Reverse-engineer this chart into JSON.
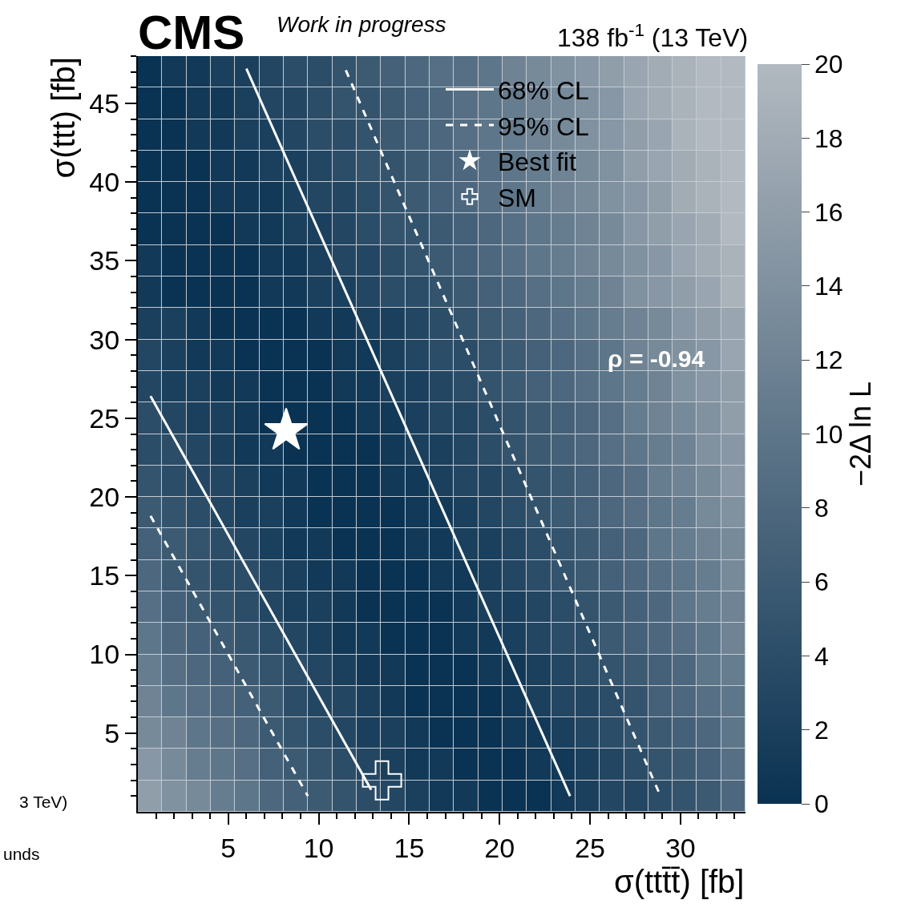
{
  "chart_data": {
    "type": "heatmap",
    "title": "CMS",
    "subtitle": "Work in progress",
    "xlabel": "σ(ttt̄t̄) [fb]",
    "ylabel": "σ(ttt) [fb]",
    "clabel": "−2Δ ln L",
    "annotations": [
      "138 fb$^{-1}$ (13 TeV)",
      "ρ = -0.94",
      "3 TeV)",
      "unds"
    ],
    "x": [
      0.67,
      2.02,
      3.36,
      4.7,
      6.05,
      7.39,
      8.74,
      10.08,
      11.42,
      12.77,
      14.11,
      15.46,
      16.8,
      18.14,
      19.49,
      20.83,
      22.18,
      23.52,
      24.86,
      26.21,
      27.55,
      28.9,
      30.24,
      31.58,
      32.93
    ],
    "y": [
      47,
      45,
      43,
      41,
      39,
      37,
      35,
      33,
      31,
      29,
      27,
      25,
      23,
      21,
      19,
      17,
      15,
      13,
      11,
      9,
      7,
      5,
      3,
      1
    ],
    "cells": [
      [
        0,
        1,
        1,
        2,
        2,
        3,
        4,
        4,
        5,
        6,
        7,
        8,
        9,
        9,
        10,
        12,
        13,
        14,
        15,
        16,
        17,
        18,
        19,
        20,
        20
      ],
      [
        0,
        0,
        1,
        1,
        2,
        3,
        3,
        4,
        5,
        5,
        6,
        7,
        8,
        9,
        10,
        11,
        12,
        13,
        14,
        15,
        17,
        18,
        19,
        20,
        20
      ],
      [
        0,
        0,
        1,
        1,
        2,
        2,
        3,
        4,
        4,
        5,
        6,
        7,
        8,
        9,
        10,
        11,
        12,
        13,
        14,
        15,
        16,
        17,
        19,
        20,
        20
      ],
      [
        0,
        0,
        0,
        1,
        1,
        2,
        2,
        3,
        4,
        5,
        5,
        6,
        7,
        8,
        9,
        10,
        11,
        12,
        13,
        14,
        16,
        17,
        18,
        19,
        20
      ],
      [
        0,
        0,
        0,
        1,
        1,
        1,
        2,
        3,
        3,
        4,
        5,
        6,
        7,
        8,
        9,
        10,
        11,
        12,
        13,
        14,
        15,
        16,
        18,
        19,
        20
      ],
      [
        0,
        0,
        0,
        0,
        1,
        1,
        2,
        2,
        3,
        4,
        5,
        5,
        6,
        7,
        8,
        9,
        10,
        11,
        12,
        13,
        15,
        16,
        17,
        18,
        20
      ],
      [
        1,
        0,
        0,
        0,
        0,
        1,
        1,
        2,
        3,
        3,
        4,
        5,
        6,
        7,
        8,
        9,
        10,
        11,
        12,
        13,
        14,
        15,
        17,
        18,
        19
      ],
      [
        1,
        0,
        0,
        0,
        0,
        1,
        1,
        2,
        2,
        3,
        4,
        4,
        5,
        6,
        7,
        8,
        9,
        10,
        11,
        12,
        14,
        15,
        16,
        17,
        19
      ],
      [
        2,
        2,
        1,
        0,
        0,
        0,
        0,
        1,
        1,
        2,
        2,
        3,
        4,
        5,
        6,
        7,
        8,
        9,
        10,
        11,
        12,
        13,
        15,
        16,
        17
      ],
      [
        3,
        2,
        1,
        1,
        0,
        0,
        0,
        0,
        1,
        1,
        2,
        3,
        4,
        4,
        5,
        6,
        7,
        8,
        9,
        10,
        12,
        13,
        14,
        15,
        17
      ],
      [
        3,
        2,
        2,
        1,
        1,
        0,
        0,
        0,
        1,
        1,
        2,
        2,
        3,
        4,
        5,
        6,
        7,
        8,
        9,
        10,
        11,
        12,
        14,
        15,
        16
      ],
      [
        4,
        3,
        2,
        2,
        1,
        0,
        0,
        0,
        0,
        1,
        1,
        2,
        3,
        3,
        4,
        5,
        6,
        7,
        8,
        9,
        11,
        12,
        13,
        14,
        16
      ],
      [
        4,
        4,
        3,
        2,
        1,
        1,
        0,
        0,
        0,
        0,
        1,
        2,
        2,
        3,
        4,
        5,
        6,
        7,
        8,
        9,
        10,
        11,
        12,
        14,
        15
      ],
      [
        5,
        4,
        3,
        3,
        2,
        1,
        1,
        0,
        0,
        0,
        1,
        1,
        2,
        3,
        3,
        4,
        5,
        6,
        7,
        8,
        9,
        11,
        12,
        13,
        15
      ],
      [
        6,
        5,
        4,
        3,
        2,
        2,
        1,
        0,
        0,
        0,
        0,
        1,
        1,
        2,
        3,
        4,
        5,
        6,
        7,
        8,
        9,
        10,
        11,
        13,
        14
      ],
      [
        7,
        6,
        5,
        4,
        3,
        2,
        1,
        1,
        0,
        0,
        0,
        1,
        1,
        2,
        2,
        3,
        4,
        5,
        6,
        7,
        8,
        10,
        11,
        12,
        13
      ],
      [
        8,
        6,
        5,
        4,
        4,
        3,
        2,
        1,
        1,
        0,
        0,
        0,
        1,
        1,
        2,
        3,
        4,
        5,
        6,
        7,
        8,
        9,
        10,
        11,
        13
      ],
      [
        9,
        7,
        6,
        5,
        4,
        3,
        2,
        2,
        1,
        0,
        0,
        0,
        0,
        1,
        2,
        2,
        3,
        4,
        5,
        6,
        7,
        8,
        10,
        11,
        12
      ],
      [
        10,
        8,
        7,
        6,
        5,
        4,
        3,
        2,
        1,
        1,
        0,
        0,
        0,
        1,
        1,
        2,
        3,
        4,
        4,
        6,
        7,
        8,
        9,
        10,
        12
      ],
      [
        11,
        9,
        8,
        7,
        6,
        5,
        4,
        3,
        2,
        1,
        1,
        0,
        0,
        0,
        1,
        1,
        2,
        3,
        4,
        5,
        6,
        7,
        8,
        10,
        11
      ],
      [
        12,
        10,
        9,
        8,
        7,
        6,
        4,
        3,
        3,
        2,
        1,
        0,
        0,
        0,
        0,
        1,
        2,
        3,
        3,
        4,
        5,
        7,
        8,
        9,
        10
      ],
      [
        13,
        12,
        10,
        9,
        8,
        6,
        5,
        4,
        3,
        2,
        2,
        1,
        0,
        0,
        0,
        1,
        1,
        2,
        3,
        4,
        5,
        6,
        7,
        8,
        10
      ],
      [
        15,
        13,
        11,
        10,
        9,
        7,
        6,
        5,
        4,
        3,
        2,
        1,
        1,
        0,
        0,
        0,
        1,
        1,
        2,
        3,
        4,
        5,
        6,
        7,
        9
      ],
      [
        16,
        14,
        13,
        11,
        10,
        8,
        7,
        6,
        5,
        4,
        3,
        2,
        1,
        1,
        0,
        0,
        0,
        1,
        2,
        3,
        3,
        4,
        5,
        6,
        8
      ]
    ],
    "colors": [
      "#0a3252",
      "#b2b9c0"
    ],
    "clim": [
      0,
      20
    ],
    "cticks": [
      0,
      2,
      4,
      6,
      8,
      10,
      12,
      14,
      16,
      18,
      20
    ],
    "xlim": [
      0,
      33.6
    ],
    "ylim": [
      0,
      48
    ],
    "xticks": [
      5,
      10,
      15,
      20,
      25,
      30
    ],
    "yticks": [
      5,
      10,
      15,
      20,
      25,
      30,
      35,
      40,
      45
    ],
    "series": [
      {
        "name": "68% CL",
        "type": "line",
        "line_style": "solid",
        "color": "#ffffff",
        "x": [
          6.0,
          23.9
        ],
        "values": [
          47.2,
          1.0
        ]
      },
      {
        "type": "line",
        "line_style": "solid",
        "color": "#ffffff",
        "x": [
          0.7,
          12.9
        ],
        "values": [
          26.4,
          1.4
        ]
      },
      {
        "name": "95% CL",
        "type": "line",
        "line_style": "dashed",
        "color": "#ffffff",
        "x": [
          11.5,
          28.9
        ],
        "values": [
          47.1,
          1.0
        ]
      },
      {
        "type": "line",
        "line_style": "dashed",
        "color": "#ffffff",
        "x": [
          0.7,
          9.4
        ],
        "values": [
          18.8,
          1.0
        ]
      },
      {
        "name": "Best fit",
        "type": "scatter",
        "marker": "star",
        "color": "#ffffff",
        "x": [
          8.2
        ],
        "values": [
          24.2
        ]
      },
      {
        "name": "SM",
        "type": "scatter",
        "marker": "cross",
        "color": "#ffffff",
        "x": [
          13.5
        ],
        "values": [
          2.0
        ]
      }
    ],
    "legend": "top right"
  }
}
